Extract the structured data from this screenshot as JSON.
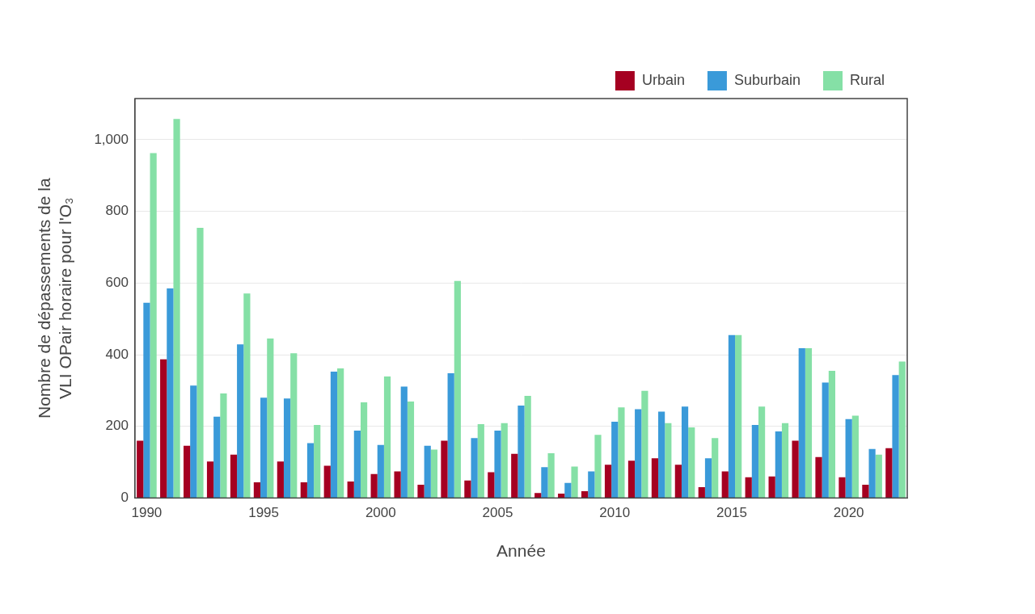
{
  "chart_data": {
    "type": "bar",
    "xlabel": "Année",
    "ylabel": [
      "Nombre de dépassements de la",
      "VLI OPair horaire pour l'O₃"
    ],
    "categories": [
      1990,
      null,
      null,
      null,
      null,
      1995,
      null,
      null,
      null,
      null,
      2000,
      null,
      null,
      null,
      null,
      2005,
      null,
      null,
      null,
      null,
      2010,
      null,
      null,
      null,
      null,
      2015,
      null,
      null,
      null,
      null,
      2020,
      null,
      null
    ],
    "series": [
      {
        "name": "Urbain",
        "color": "#a50021",
        "values": [
          160,
          387,
          146,
          102,
          121,
          44,
          102,
          44,
          90,
          46,
          67,
          74,
          37,
          160,
          49,
          72,
          123,
          14,
          12,
          19,
          93,
          104,
          111,
          93,
          30,
          74,
          58,
          60,
          160,
          114,
          58,
          37,
          139
        ]
      },
      {
        "name": "Suburbain",
        "color": "#3a9ad9",
        "values": [
          545,
          585,
          314,
          227,
          429,
          280,
          278,
          153,
          353,
          188,
          148,
          311,
          146,
          348,
          167,
          188,
          258,
          86,
          42,
          74,
          213,
          248,
          241,
          255,
          111,
          455,
          204,
          186,
          418,
          322,
          220,
          137,
          343
        ]
      },
      {
        "name": "Rural",
        "color": "#85e0a6",
        "values": [
          963,
          1058,
          754,
          292,
          571,
          445,
          404,
          204,
          362,
          267,
          339,
          269,
          135,
          606,
          206,
          209,
          285,
          125,
          88,
          176,
          253,
          299,
          209,
          197,
          167,
          455,
          255,
          209,
          418,
          355,
          230,
          121,
          381
        ]
      }
    ],
    "ylim": [
      0,
      1115
    ],
    "yticks": [
      0,
      200,
      400,
      600,
      800,
      1000
    ],
    "grid": true,
    "legend": "top-right"
  }
}
